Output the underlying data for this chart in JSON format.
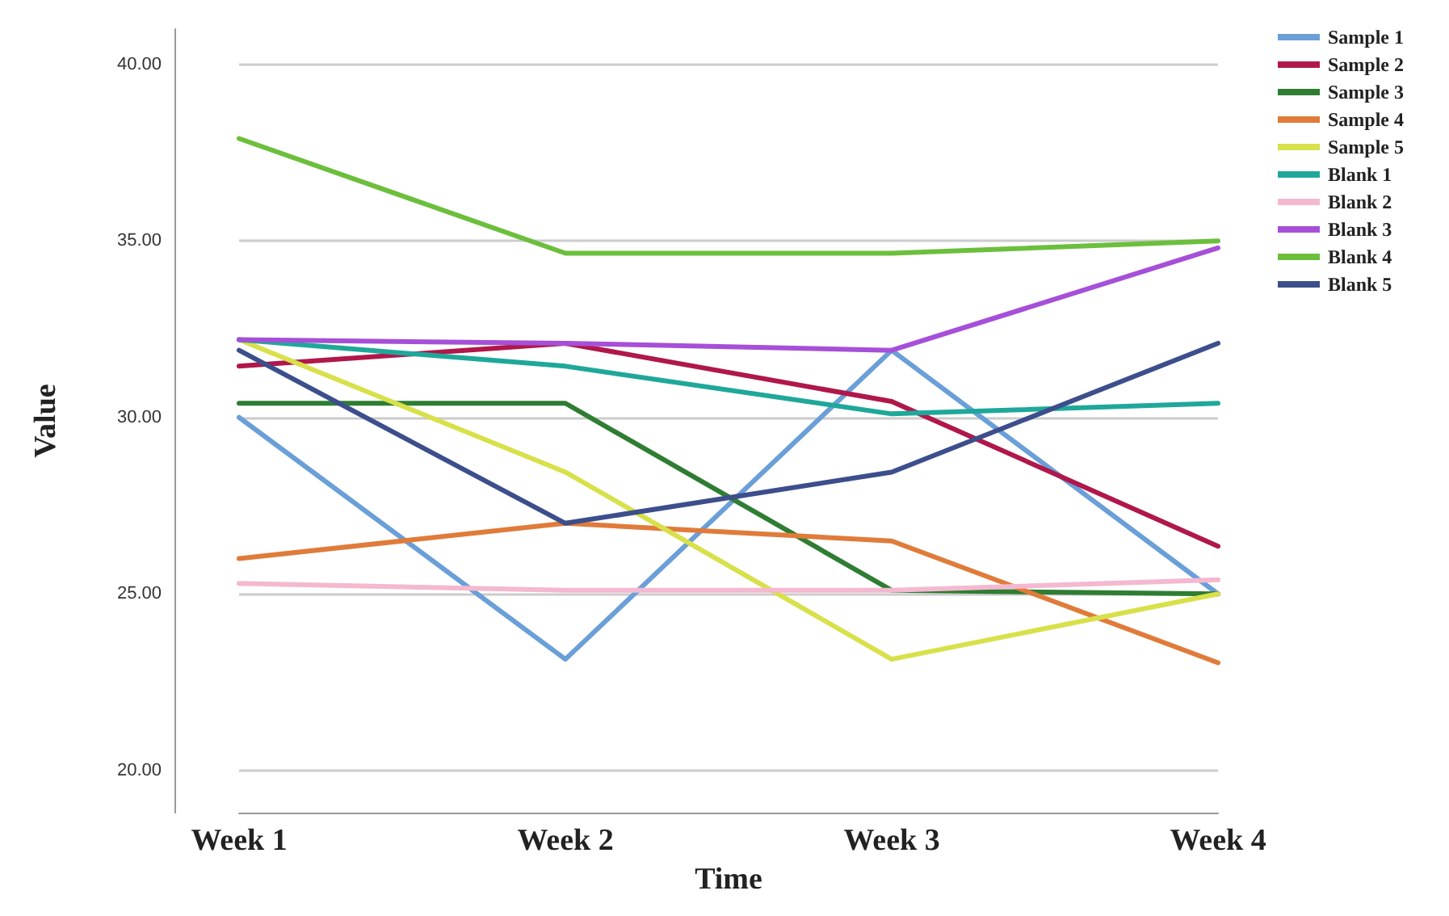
{
  "chart_data": {
    "type": "line",
    "xlabel": "Time",
    "ylabel": "Value",
    "categories": [
      "Week 1",
      "Week 2",
      "Week 3",
      "Week 4"
    ],
    "ylim": [
      18.8,
      41
    ],
    "yticks": [
      {
        "value": 20,
        "label": "20.00"
      },
      {
        "value": 25,
        "label": "25.00"
      },
      {
        "value": 30,
        "label": "30.00"
      },
      {
        "value": 35,
        "label": "35.00"
      },
      {
        "value": 40,
        "label": "40.00"
      }
    ],
    "grid": "y",
    "legend": "top right",
    "marker": "none",
    "line_style": "solid",
    "series": [
      {
        "name": "Sample 1",
        "color": "#6a9fd8",
        "values": [
          30.0,
          23.15,
          31.9,
          25.0
        ]
      },
      {
        "name": "Sample 2",
        "color": "#b0174a",
        "values": [
          31.45,
          32.1,
          30.45,
          26.35
        ]
      },
      {
        "name": "Sample 3",
        "color": "#2e7d32",
        "values": [
          30.4,
          30.4,
          25.1,
          25.0
        ]
      },
      {
        "name": "Sample 4",
        "color": "#e07b3a",
        "values": [
          26.0,
          27.0,
          26.5,
          23.05
        ]
      },
      {
        "name": "Sample 5",
        "color": "#d8e04a",
        "values": [
          32.2,
          28.45,
          23.15,
          25.0
        ]
      },
      {
        "name": "Blank 1",
        "color": "#1fa89a",
        "values": [
          32.2,
          31.45,
          30.1,
          30.4
        ]
      },
      {
        "name": "Blank 2",
        "color": "#f4b8d0",
        "values": [
          25.3,
          25.1,
          25.1,
          25.4
        ]
      },
      {
        "name": "Blank 3",
        "color": "#a64fd8",
        "values": [
          32.2,
          32.1,
          31.9,
          34.8
        ]
      },
      {
        "name": "Blank 4",
        "color": "#6cbf3c",
        "values": [
          37.9,
          34.65,
          34.65,
          35.0
        ]
      },
      {
        "name": "Blank 5",
        "color": "#3c4e8c",
        "values": [
          31.9,
          27.0,
          28.45,
          32.1
        ]
      }
    ]
  }
}
